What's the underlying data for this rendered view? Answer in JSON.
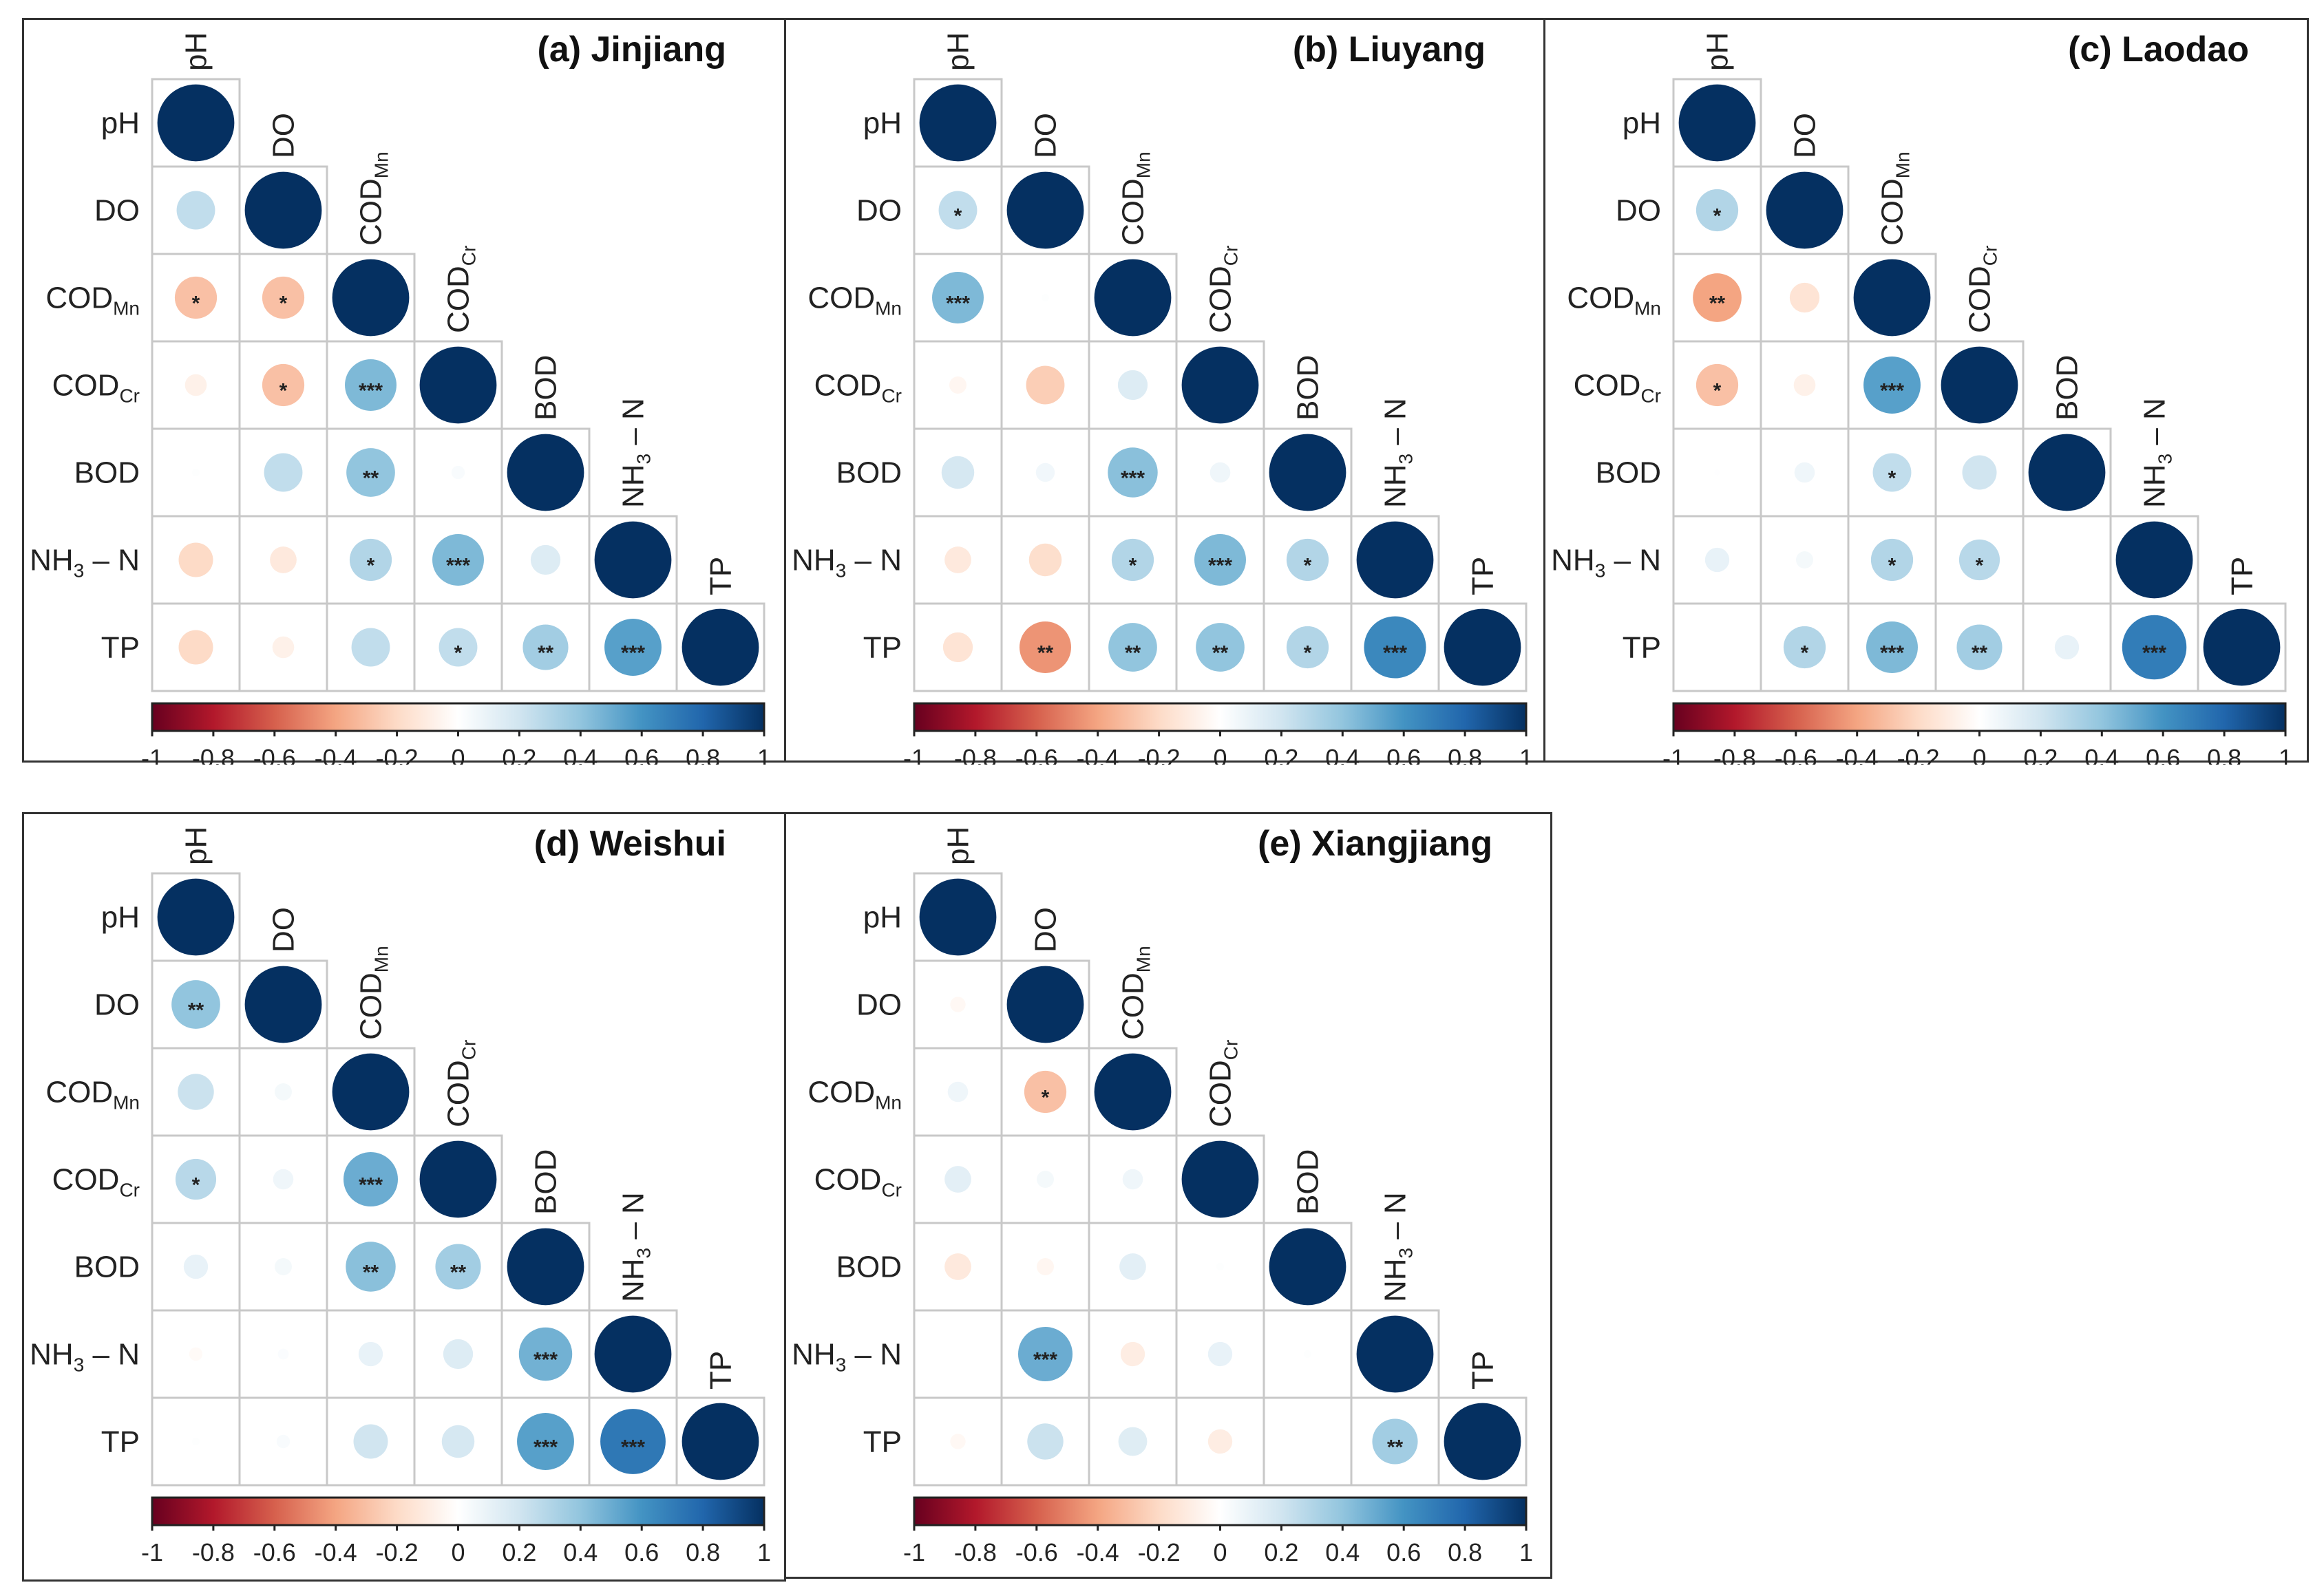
{
  "chart_data": {
    "type": "heatmap",
    "subtype": "correlation-circle-lower-triangle",
    "variables": [
      {
        "text": "pH",
        "sub": "",
        "suffix": ""
      },
      {
        "text": "DO",
        "sub": "",
        "suffix": ""
      },
      {
        "text": "COD",
        "sub": "Mn",
        "suffix": ""
      },
      {
        "text": "COD",
        "sub": "Cr",
        "suffix": ""
      },
      {
        "text": "BOD",
        "sub": "",
        "suffix": ""
      },
      {
        "text": "NH",
        "sub": "3",
        "suffix": " – N"
      },
      {
        "text": "TP",
        "sub": "",
        "suffix": ""
      }
    ],
    "colorbar": {
      "range": [
        -1,
        1
      ],
      "ticks": [
        "-1",
        "-0.8",
        "-0.6",
        "-0.4",
        "-0.2",
        "0",
        "0.2",
        "0.4",
        "0.6",
        "0.8",
        "1"
      ],
      "colors": [
        "#67001F",
        "#B2182B",
        "#D6604D",
        "#F4A582",
        "#FDDBC7",
        "#FFFFFF",
        "#D1E5F0",
        "#92C5DE",
        "#4393C3",
        "#2166AC",
        "#053061"
      ]
    },
    "panels": [
      {
        "title": "(a) Jinjiang",
        "r": [
          [
            1
          ],
          [
            0.25,
            1
          ],
          [
            -0.3,
            -0.3,
            1
          ],
          [
            -0.08,
            -0.3,
            0.45,
            1
          ],
          [
            0.01,
            0.25,
            0.4,
            0.03,
            1
          ],
          [
            -0.2,
            -0.12,
            0.3,
            0.45,
            0.15,
            1
          ],
          [
            -0.2,
            -0.08,
            0.25,
            0.25,
            0.35,
            0.55,
            1
          ]
        ],
        "sig": [
          [
            ""
          ],
          [
            "",
            ""
          ],
          [
            "*",
            "*",
            ""
          ],
          [
            "",
            "*",
            "***",
            ""
          ],
          [
            "",
            "",
            "**",
            "",
            ""
          ],
          [
            "",
            "",
            "*",
            "***",
            "",
            ""
          ],
          [
            "",
            "",
            "",
            "*",
            "**",
            "***",
            ""
          ]
        ]
      },
      {
        "title": "(b) Liuyang",
        "r": [
          [
            1
          ],
          [
            0.25,
            1
          ],
          [
            0.45,
            0.01,
            1
          ],
          [
            -0.05,
            -0.25,
            0.15,
            1
          ],
          [
            0.18,
            0.06,
            0.42,
            0.07,
            1
          ],
          [
            -0.12,
            -0.18,
            0.3,
            0.45,
            0.3,
            1
          ],
          [
            -0.15,
            -0.45,
            0.4,
            0.4,
            0.3,
            0.65,
            1
          ]
        ],
        "sig": [
          [
            ""
          ],
          [
            "*",
            ""
          ],
          [
            "***",
            "",
            ""
          ],
          [
            "",
            "",
            "",
            ""
          ],
          [
            "",
            "",
            "***",
            "",
            ""
          ],
          [
            "",
            "",
            "*",
            "***",
            "*",
            ""
          ],
          [
            "",
            "**",
            "**",
            "**",
            "*",
            "***",
            ""
          ]
        ]
      },
      {
        "title": "(c) Laodao",
        "r": [
          [
            1
          ],
          [
            0.3,
            1
          ],
          [
            -0.4,
            -0.15,
            1
          ],
          [
            -0.3,
            -0.08,
            0.55,
            1
          ],
          [
            0.005,
            0.07,
            0.25,
            0.2,
            1
          ],
          [
            0.1,
            0.05,
            0.3,
            0.28,
            0.0,
            1
          ],
          [
            0.0,
            0.3,
            0.45,
            0.35,
            0.1,
            0.7,
            1
          ]
        ],
        "sig": [
          [
            ""
          ],
          [
            "*",
            ""
          ],
          [
            "**",
            "",
            ""
          ],
          [
            "*",
            "",
            "***",
            ""
          ],
          [
            "",
            "",
            "*",
            "",
            ""
          ],
          [
            "",
            "",
            "*",
            "*",
            "",
            ""
          ],
          [
            "",
            "*",
            "***",
            "**",
            "",
            "***",
            ""
          ]
        ]
      },
      {
        "title": "(d) Weishui",
        "r": [
          [
            1
          ],
          [
            0.4,
            1
          ],
          [
            0.22,
            0.05,
            1
          ],
          [
            0.28,
            0.07,
            0.5,
            1
          ],
          [
            0.1,
            0.05,
            0.42,
            0.35,
            1
          ],
          [
            -0.03,
            0.02,
            0.1,
            0.15,
            0.48,
            1
          ],
          [
            0.01,
            0.03,
            0.2,
            0.18,
            0.55,
            0.72,
            1
          ]
        ],
        "sig": [
          [
            ""
          ],
          [
            "**",
            ""
          ],
          [
            "",
            "",
            ""
          ],
          [
            "*",
            "",
            "***",
            ""
          ],
          [
            "",
            "",
            "**",
            "**",
            ""
          ],
          [
            "",
            "",
            "",
            "",
            "***",
            ""
          ],
          [
            "",
            "",
            "",
            "",
            "***",
            "***",
            ""
          ]
        ]
      },
      {
        "title": "(e) Xiangjiang",
        "r": [
          [
            1
          ],
          [
            -0.04,
            1
          ],
          [
            0.07,
            -0.3,
            1
          ],
          [
            0.12,
            0.05,
            0.07,
            1
          ],
          [
            -0.12,
            -0.05,
            0.12,
            0.01,
            1
          ],
          [
            0.0,
            0.5,
            -0.1,
            0.1,
            0.01,
            1
          ],
          [
            -0.04,
            0.22,
            0.14,
            -0.1,
            0.0,
            0.35,
            1
          ]
        ],
        "sig": [
          [
            ""
          ],
          [
            "",
            ""
          ],
          [
            "",
            "*",
            ""
          ],
          [
            "",
            "",
            "",
            ""
          ],
          [
            "",
            "",
            "",
            "",
            ""
          ],
          [
            "",
            "***",
            "",
            "",
            "",
            ""
          ],
          [
            "",
            "",
            "",
            "",
            "",
            "**",
            ""
          ]
        ]
      }
    ]
  }
}
